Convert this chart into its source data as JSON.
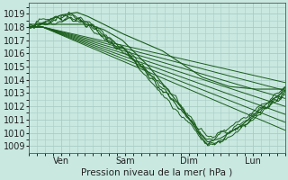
{
  "xlabel": "Pression niveau de la mer( hPa )",
  "bg_color": "#c8e8e0",
  "grid_color": "#a8ccc4",
  "line_color": "#1a5c1a",
  "ylim": [
    1008.5,
    1019.8
  ],
  "xlim": [
    0,
    96
  ],
  "yticks": [
    1009,
    1010,
    1011,
    1012,
    1013,
    1014,
    1015,
    1016,
    1017,
    1018,
    1019
  ],
  "xtick_positions": [
    12,
    36,
    60,
    84
  ],
  "xtick_labels": [
    "Ven",
    "Sam",
    "Dim",
    "Lun"
  ]
}
